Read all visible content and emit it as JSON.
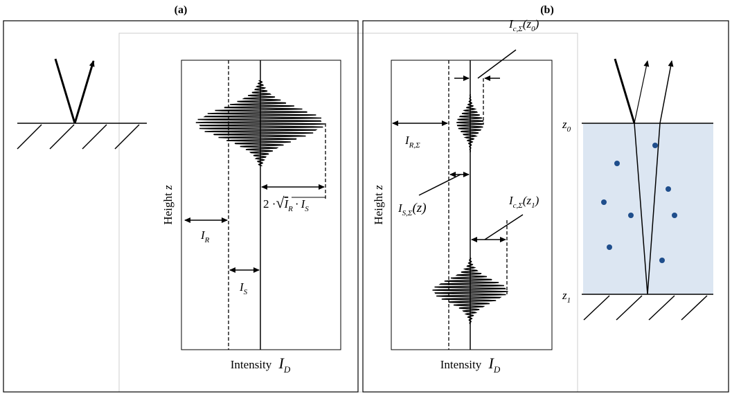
{
  "panels": [
    {
      "title": "(a)",
      "y_axis": {
        "word": "Height",
        "symbol": "z"
      },
      "x_axis": {
        "word": "Intensity",
        "symbol": "I",
        "sub": "D"
      },
      "labels": {
        "reference": {
          "symbol": "I",
          "sub": "R"
        },
        "sample": {
          "symbol": "I",
          "sub": "S"
        },
        "modulation": {
          "factor": "2 ·",
          "root": "√",
          "a": "I",
          "a_sub": "R",
          "dot": "·",
          "b": "I",
          "b_sub": "S"
        }
      }
    },
    {
      "title": "(b)",
      "y_axis": {
        "word": "Height",
        "symbol": "z"
      },
      "x_axis": {
        "word": "Intensity",
        "symbol": "I",
        "sub": "D"
      },
      "labels": {
        "reference": {
          "symbol": "I",
          "sub": "R,Σ"
        },
        "sample": {
          "symbol": "I",
          "sub": "S,Σ",
          "arg": "(z)"
        },
        "top_packet": {
          "symbol": "I",
          "sub": "c,Σ",
          "arg": "(z",
          "arg_sub": "0",
          "close": ")"
        },
        "bottom_packet": {
          "symbol": "I",
          "sub": "c,Σ",
          "arg": "(z",
          "arg_sub": "1",
          "close": ")"
        },
        "top_surface": {
          "symbol": "z",
          "sub": "0"
        },
        "bottom_surface": {
          "symbol": "z",
          "sub": "1"
        }
      }
    }
  ]
}
